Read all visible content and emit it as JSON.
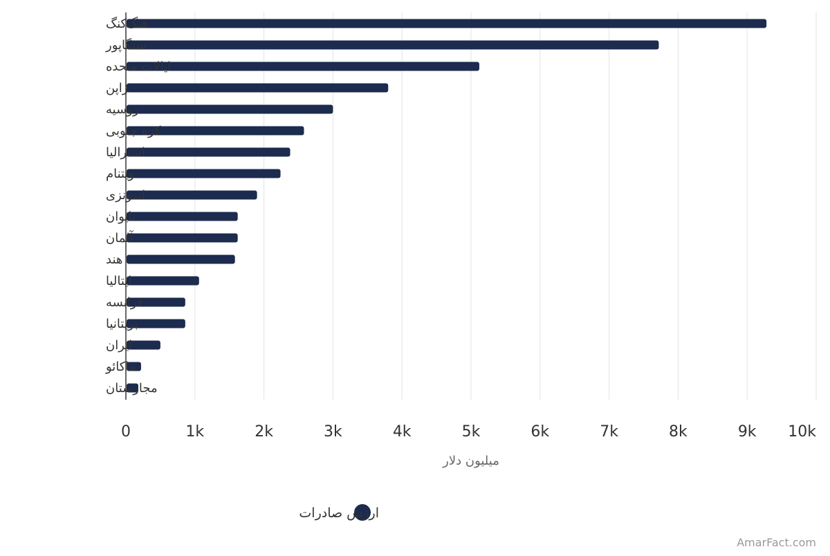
{
  "chart_data": {
    "type": "bar",
    "orientation": "horizontal",
    "categories": [
      "هنگ‌کنگ",
      "سنگاپور",
      "ایالات متحده",
      "ژاپن",
      "روسیه",
      "کره جنوبی",
      "استرالیا",
      "ویتنام",
      "اندونزی",
      "تایوان",
      "آلمان",
      "هند",
      "ایتالیا",
      "فرانسه",
      "بریتانیا",
      "ایران",
      "ماکائو",
      "مجارستان"
    ],
    "series": [
      {
        "name": "ارزش صادرات",
        "color": "#1c2b4e",
        "values": [
          9280,
          7720,
          5120,
          3800,
          3000,
          2580,
          2380,
          2240,
          1900,
          1620,
          1620,
          1580,
          1060,
          860,
          860,
          500,
          220,
          180
        ]
      }
    ],
    "xlim": [
      0,
      10000
    ],
    "xticks": [
      "0",
      "1k",
      "2k",
      "3k",
      "4k",
      "5k",
      "6k",
      "7k",
      "8k",
      "9k",
      "10k"
    ],
    "xtick_values": [
      0,
      1000,
      2000,
      3000,
      4000,
      5000,
      6000,
      7000,
      8000,
      9000,
      10000
    ],
    "xlabel": "میلیون دلار",
    "grid": true,
    "legend": "bottom-center",
    "title": ""
  },
  "credit": "AmarFact.com"
}
